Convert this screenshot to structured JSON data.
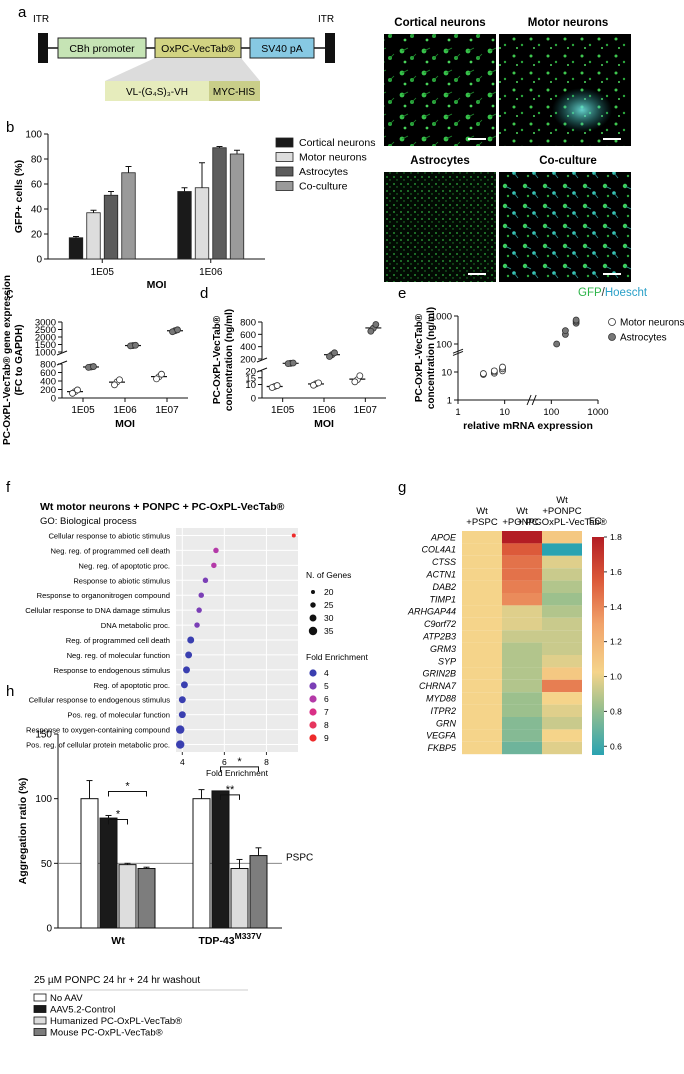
{
  "panel_labels": [
    "a",
    "b",
    "c",
    "d",
    "e",
    "f",
    "g",
    "h"
  ],
  "construct": {
    "itr_left": "ITR",
    "itr_right": "ITR",
    "blocks": [
      "CBh promoter",
      "OxPC-VecTab®",
      "SV40 pA"
    ],
    "sub_blocks": [
      "VL-(G₄S)₃-VH",
      "MYC-HIS"
    ],
    "colors": {
      "cbh": "#c6e4b5",
      "oxpc": "#d2d382",
      "sv40": "#87c9e3",
      "vl": "#e6ecbc",
      "myc": "#c9ce89"
    }
  },
  "micrographs": {
    "titles": [
      "Cortical neurons",
      "Motor neurons",
      "Astrocytes",
      "Co-culture"
    ],
    "legend_gfp": "GFP",
    "legend_sep": "/",
    "legend_hoechst": "Hoescht"
  },
  "chart_data": [
    {
      "panel": "b",
      "type": "bar",
      "categories": [
        "1E05",
        "1E06"
      ],
      "xlabel": "MOI",
      "ylabel": "GFP+ cells (%)",
      "ylim": [
        0,
        100
      ],
      "yticks": [
        "0",
        "20",
        "40",
        "60",
        "80",
        "100"
      ],
      "series": [
        {
          "name": "Cortical neurons",
          "values": [
            17,
            54
          ],
          "errors": [
            1,
            3
          ],
          "color": "#1a1a1a"
        },
        {
          "name": "Motor neurons",
          "values": [
            37,
            57
          ],
          "errors": [
            2,
            20
          ],
          "color": "#dddddd"
        },
        {
          "name": "Astrocytes",
          "values": [
            51,
            89
          ],
          "errors": [
            3,
            1
          ],
          "color": "#5c5c5c"
        },
        {
          "name": "Co-culture",
          "values": [
            69,
            84
          ],
          "errors": [
            5,
            3
          ],
          "color": "#9a9a9a"
        }
      ]
    },
    {
      "panel": "c",
      "type": "scatter",
      "categories": [
        "1E05",
        "1E06",
        "1E07"
      ],
      "xlabel": "MOI",
      "ylabel": "PC-OxPL-VecTab® gene expression",
      "ylabel2": "(FC to GAPDH)",
      "yticks": [
        "0",
        "200",
        "400",
        "600",
        "800",
        "1000",
        "1500",
        "2000",
        "2500",
        "3000"
      ],
      "series": [
        {
          "name": "Motor neurons",
          "points": [
            [
              150,
              110,
              190
            ],
            [
              380,
              310,
              430
            ],
            [
              500,
              450,
              560
            ]
          ]
        },
        {
          "name": "Astrocytes",
          "points": [
            [
              730,
              720,
              740
            ],
            [
              1430,
              1410,
              1450
            ],
            [
              2420,
              2350,
              2480
            ]
          ]
        }
      ]
    },
    {
      "panel": "d",
      "type": "scatter",
      "categories": [
        "1E05",
        "1E06",
        "1E07"
      ],
      "xlabel": "MOI",
      "ylabel": "PC-OxPL-VecTab®",
      "ylabel2": "concentration (ng/ml)",
      "yticks": [
        "0",
        "10",
        "15",
        "20",
        "200",
        "400",
        "600",
        "800"
      ],
      "series": [
        {
          "name": "Motor neurons",
          "points": [
            [
              8.5,
              7.8,
              9.2
            ],
            [
              10.5,
              9.5,
              11.2
            ],
            [
              13.5,
              12.0,
              16.5
            ]
          ]
        },
        {
          "name": "Astrocytes",
          "points": [
            [
              130,
              125,
              135
            ],
            [
              270,
              240,
              300
            ],
            [
              700,
              650,
              760
            ]
          ]
        }
      ]
    },
    {
      "panel": "e",
      "type": "scatter",
      "xlabel": "relative mRNA expression",
      "ylabel": "PC-OxPL-VecTab®",
      "ylabel2": "concentration (ng/ml)",
      "xticks": [
        "1",
        "10",
        "100",
        "1000"
      ],
      "yticks": [
        "1",
        "10",
        "100",
        "1000"
      ],
      "series": [
        {
          "name": "Motor neurons",
          "points": [
            [
              3.5,
              8.2
            ],
            [
              3.5,
              8.8
            ],
            [
              6,
              9
            ],
            [
              6,
              10
            ],
            [
              6,
              11
            ],
            [
              9,
              11
            ],
            [
              9,
              13
            ],
            [
              9,
              15
            ]
          ]
        },
        {
          "name": "Astrocytes",
          "points": [
            [
              130,
              100
            ],
            [
              200,
              220
            ],
            [
              200,
              300
            ],
            [
              340,
              550
            ],
            [
              340,
              650
            ],
            [
              340,
              720
            ]
          ]
        }
      ]
    },
    {
      "panel": "f",
      "type": "scatter",
      "title": "Wt motor neurons + PONPC + PC-OxPL-VecTab®",
      "subtitle": "GO: Biological process",
      "xlabel": "Fold Enrichment",
      "xticks": [
        "4",
        "6",
        "8"
      ],
      "xlim": [
        3.7,
        9.5
      ],
      "terms": [
        "Cellular response to abiotic stimulus",
        "Neg. reg. of programmed cell death",
        "Neg. reg. of apoptotic proc.",
        "Response to abiotic stimulus",
        "Response to organonitrogen compound",
        "Cellular response to DNA damage stimulus",
        "DNA metabolic proc.",
        "Reg. of programmed cell death",
        "Neg. reg. of molecular function",
        "Response to endogenous stimulus",
        "Reg. of apoptotic proc.",
        "Cellular response to endogenous stimulus",
        "Pos. reg. of molecular function",
        "Response to oxygen-containing compound",
        "Pos. reg. of cellular protein metabolic proc."
      ],
      "fold_enrichment": [
        9.3,
        5.6,
        5.5,
        5.1,
        4.9,
        4.8,
        4.7,
        4.4,
        4.3,
        4.2,
        4.1,
        4.0,
        4.0,
        3.9,
        3.9
      ],
      "n_genes": [
        20,
        25,
        25,
        25,
        25,
        25,
        25,
        30,
        30,
        30,
        30,
        30,
        30,
        35,
        35
      ],
      "size_legend_title": "N. of Genes",
      "size_levels": [
        "20",
        "25",
        "30",
        "35"
      ],
      "color_legend_title": "Fold Enrichment",
      "color_levels": [
        "4",
        "5",
        "6",
        "7",
        "8",
        "9"
      ],
      "color_scale": [
        "#3a3fb0",
        "#7b3fb6",
        "#b43aa8",
        "#d92f86",
        "#e6365e",
        "#ee2a2a"
      ]
    },
    {
      "panel": "g",
      "type": "heatmap",
      "columns": [
        "Wt\n+PSPC",
        "Wt\n+PONPC",
        "Wt\n+PONPC\n+ PC-OxPL-VecTab®"
      ],
      "rows": [
        "APOE",
        "COL4A1",
        "CTSS",
        "ACTN1",
        "DAB2",
        "TIMP1",
        "ARHGAP44",
        "C9orf72",
        "ATP2B3",
        "GRM3",
        "SYP",
        "GRIN2B",
        "CHRNA7",
        "MYD88",
        "ITPR2",
        "GRN",
        "VEGFA",
        "FKBP5"
      ],
      "values": [
        [
          1.0,
          1.8,
          1.05
        ],
        [
          1.0,
          1.5,
          0.55
        ],
        [
          1.0,
          1.4,
          0.95
        ],
        [
          1.0,
          1.4,
          0.9
        ],
        [
          1.0,
          1.35,
          0.85
        ],
        [
          1.0,
          1.3,
          0.8
        ],
        [
          1.0,
          0.95,
          0.85
        ],
        [
          1.0,
          0.95,
          0.9
        ],
        [
          1.0,
          0.9,
          0.9
        ],
        [
          1.0,
          0.85,
          0.9
        ],
        [
          1.0,
          0.85,
          0.95
        ],
        [
          1.0,
          0.85,
          1.05
        ],
        [
          1.0,
          0.85,
          1.35
        ],
        [
          1.0,
          0.8,
          1.0
        ],
        [
          1.0,
          0.8,
          0.95
        ],
        [
          1.0,
          0.75,
          0.9
        ],
        [
          1.0,
          0.75,
          1.0
        ],
        [
          1.0,
          0.7,
          0.95
        ]
      ],
      "legend_title": "FC",
      "legend_ticks": [
        "0.6",
        "0.8",
        "1.0",
        "1.2",
        "1.4",
        "1.6",
        "1.8"
      ],
      "range": [
        0.55,
        1.8
      ]
    },
    {
      "panel": "h",
      "type": "bar",
      "categories": [
        "Wt",
        "TDP-43"
      ],
      "category_sup": [
        "",
        "M337V"
      ],
      "ylabel": "Aggregation ratio (%)",
      "ylim": [
        0,
        150
      ],
      "yticks": [
        "0",
        "50",
        "100",
        "150"
      ],
      "reference_line": {
        "value": 50,
        "label": "PSPC"
      },
      "series": [
        {
          "name": "No AAV",
          "values": [
            100,
            100
          ],
          "errors": [
            14,
            7
          ],
          "color": "#ffffff"
        },
        {
          "name": "AAV5.2-Control",
          "values": [
            85,
            106
          ],
          "errors": [
            2,
            0
          ],
          "color": "#1a1a1a"
        },
        {
          "name": "Humanized PC-OxPL-VecTab®",
          "values": [
            49,
            46
          ],
          "errors": [
            1,
            7
          ],
          "color": "#dddddd"
        },
        {
          "name": "Mouse PC-OxPL-VecTab®",
          "values": [
            46,
            56
          ],
          "errors": [
            1,
            6
          ],
          "color": "#7d7d7d"
        }
      ],
      "significance": [
        {
          "group": 0,
          "from": 1,
          "to": 3,
          "label": "*"
        },
        {
          "group": 0,
          "from": 1,
          "to": 2,
          "label": "*"
        },
        {
          "group": 1,
          "from": 1,
          "to": 3,
          "label": "*"
        },
        {
          "group": 1,
          "from": 1,
          "to": 2,
          "label": "**"
        }
      ],
      "treatment": "25 µM PONPC 24 hr + 24 hr washout"
    }
  ]
}
